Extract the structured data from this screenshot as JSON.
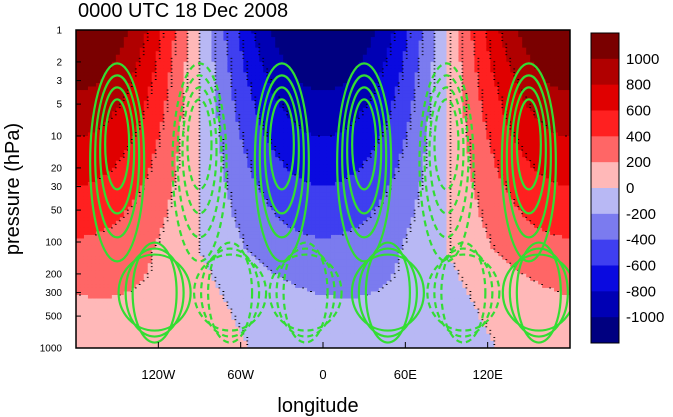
{
  "chart_data": {
    "type": "heatmap",
    "title": "0000 UTC 18 Dec 2008",
    "xlabel": "longitude",
    "ylabel": "pressure (hPa)",
    "x_ticks": [
      {
        "value": -120,
        "label": "120W"
      },
      {
        "value": -60,
        "label": "60W"
      },
      {
        "value": 0,
        "label": "0"
      },
      {
        "value": 60,
        "label": "60E"
      },
      {
        "value": 120,
        "label": "120E"
      }
    ],
    "y_scale": "log",
    "y_reversed": true,
    "y_ticks": [
      1,
      2,
      3,
      5,
      10,
      20,
      30,
      50,
      100,
      200,
      300,
      500,
      1000
    ],
    "xlim": [
      -180,
      180
    ],
    "ylim": [
      1000,
      1
    ],
    "colorbar": {
      "labels": [
        "1000",
        "800",
        "600",
        "400",
        "200",
        "0",
        "-200",
        "-400",
        "-600",
        "-800",
        "-1000"
      ],
      "colors": [
        "#7a0000",
        "#b00000",
        "#e00000",
        "#ff2020",
        "#ff6666",
        "#ffb8b8",
        "#b8b8f4",
        "#7b7bef",
        "#3f3ff0",
        "#0a0ae0",
        "#0000b4",
        "#000080"
      ]
    },
    "fill_pattern": {
      "description_of_bands": "wave-1 pattern: positive over Pacific/120W and 120E-180, negative over 60W-60E, amplitude increasing upward",
      "upper_max_longitudes": [
        -150,
        150
      ],
      "upper_min_longitude": 0
    },
    "contour_color": "#33dd33",
    "contour_negative_style": "dashed",
    "colors": {
      "negative_deep": "#000080",
      "positive_deep": "#7a0000",
      "contour": "#33dd33"
    }
  }
}
